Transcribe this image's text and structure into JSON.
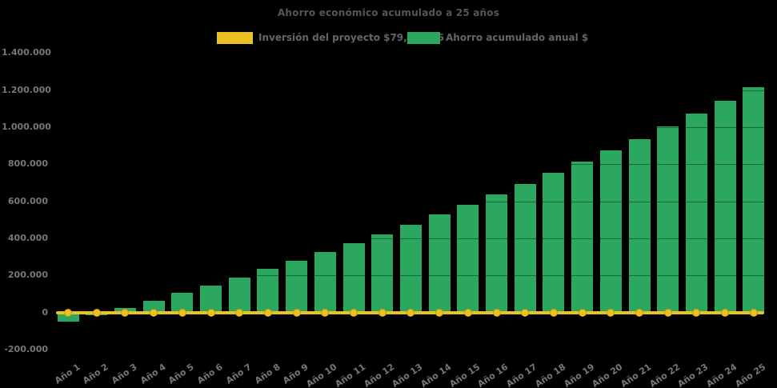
{
  "chart_data": {
    "type": "bar",
    "title": "Ahorro económico acumulado a 25 años",
    "background": "#000000",
    "legend_position": "top",
    "grid": true,
    "categories": [
      "Año 1",
      "Año 2",
      "Año 3",
      "Año 4",
      "Año 5",
      "Año 6",
      "Año 7",
      "Año 8",
      "Año 9",
      "Año 10",
      "Año 11",
      "Año 12",
      "Año 13",
      "Año 14",
      "Año 15",
      "Año 16",
      "Año 17",
      "Año 18",
      "Año 19",
      "Año 20",
      "Año 21",
      "Año 22",
      "Año 23",
      "Año 24",
      "Año 25"
    ],
    "series": [
      {
        "name": "Inversión del proyecto $79,405.56",
        "type": "line",
        "color": "#ECC122",
        "marker": "circle",
        "constant_value": 79405.56,
        "drawn_at_y_value": 0
      },
      {
        "name": "Ahorro acumulado anual $",
        "type": "bar",
        "color": "#2BA75F",
        "values": [
          -47000,
          -14000,
          26000,
          66000,
          106000,
          148000,
          191000,
          235000,
          279000,
          326000,
          376000,
          424000,
          475000,
          530000,
          583000,
          638000,
          695000,
          753000,
          813000,
          876000,
          937000,
          1005000,
          1076000,
          1144000,
          1218000
        ]
      }
    ],
    "xlabel": "",
    "ylabel": "",
    "ylim": [
      -200000,
      1400000
    ],
    "y_tick_values": [
      1400000,
      1200000,
      1000000,
      800000,
      600000,
      400000,
      200000,
      0,
      -200000
    ],
    "y_tick_labels": [
      "1.400.000",
      "1.200.000",
      "1.000.000",
      "800.000",
      "600.000",
      "400.000",
      "200.000",
      "0",
      "-200.000"
    ]
  }
}
